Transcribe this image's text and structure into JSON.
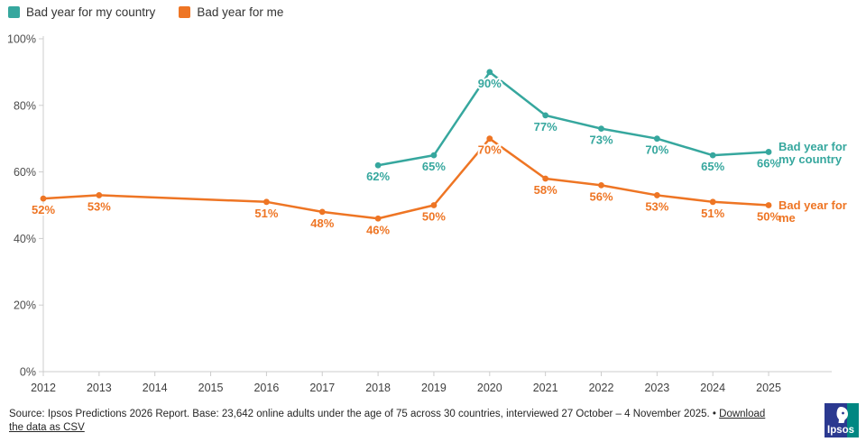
{
  "legend": {
    "items": [
      {
        "label": "Bad year for my country",
        "color": "#36A79E"
      },
      {
        "label": "Bad year for me",
        "color": "#EE7524"
      }
    ]
  },
  "chart_data": {
    "type": "line",
    "categories": [
      "2012",
      "2013",
      "2014",
      "2015",
      "2016",
      "2017",
      "2018",
      "2019",
      "2020",
      "2021",
      "2022",
      "2023",
      "2024",
      "2025"
    ],
    "series": [
      {
        "name": "Bad year for my country",
        "color": "#36A79E",
        "values": [
          null,
          null,
          null,
          null,
          null,
          null,
          62,
          65,
          90,
          77,
          73,
          70,
          65,
          66
        ],
        "end_label": "Bad year for my country"
      },
      {
        "name": "Bad year for me",
        "color": "#EE7524",
        "values": [
          52,
          53,
          null,
          null,
          51,
          48,
          46,
          50,
          70,
          58,
          56,
          53,
          51,
          50
        ],
        "end_label": "Bad year for me"
      }
    ],
    "ylim": [
      0,
      100
    ],
    "yticks": [
      0,
      20,
      40,
      60,
      80,
      100
    ],
    "value_suffix": "%",
    "grid": false,
    "legend_position": "top-left",
    "data_labels": true
  },
  "footer": {
    "source_text": "Source: Ipsos Predictions 2026 Report. Base: 23,642 online adults under the age of 75 across 30 countries, interviewed 27 October – 4 November 2025. • ",
    "link_text": "Download the data as CSV"
  },
  "logo": {
    "text": "Ipsos",
    "navy": "#2B3990",
    "teal": "#008782"
  }
}
